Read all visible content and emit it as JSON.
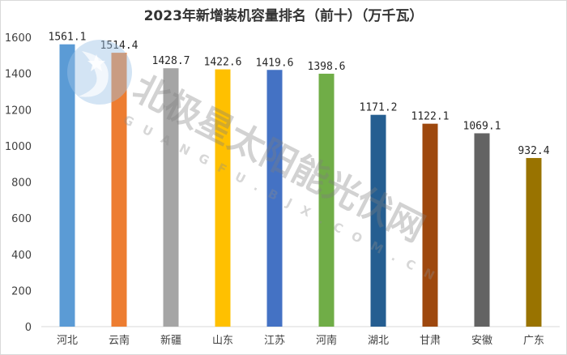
{
  "chart_data": {
    "type": "bar",
    "title": "2023年新增装机容量排名（前十）（万千瓦）",
    "categories": [
      "河北",
      "云南",
      "新疆",
      "山东",
      "江苏",
      "河南",
      "湖北",
      "甘肃",
      "安徽",
      "广东"
    ],
    "values": [
      1561.1,
      1514.4,
      1428.7,
      1422.6,
      1419.6,
      1398.6,
      1171.2,
      1122.1,
      1069.1,
      932.4
    ],
    "data_labels": [
      "1561.1",
      "1514.4",
      "1428.7",
      "1422.6",
      "1419.6",
      "1398.6",
      "1171.2",
      "1122.1",
      "1069.1",
      "932.4"
    ],
    "bar_colors": [
      "#5b9bd5",
      "#ed7d31",
      "#a5a5a5",
      "#ffc000",
      "#4472c4",
      "#70ad47",
      "#255e91",
      "#9e480e",
      "#636363",
      "#997300"
    ],
    "ylim": [
      0,
      1600
    ],
    "yticks": [
      0,
      200,
      400,
      600,
      800,
      1000,
      1200,
      1400,
      1600
    ],
    "grid": false,
    "legend": "none"
  },
  "watermark": {
    "text": "北极星太阳能光伏网",
    "subtext": "GUANGFU.BJX.COM.CN"
  }
}
